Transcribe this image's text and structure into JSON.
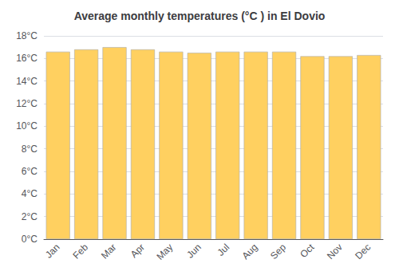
{
  "chart_data": {
    "type": "bar",
    "title": "Average monthly temperatures (°C ) in El Dovio",
    "categories": [
      "Jan",
      "Feb",
      "Mar",
      "Apr",
      "May",
      "Jun",
      "Jul",
      "Aug",
      "Sep",
      "Oct",
      "Nov",
      "Dec"
    ],
    "values": [
      16.6,
      16.8,
      17.0,
      16.8,
      16.6,
      16.5,
      16.6,
      16.6,
      16.6,
      16.2,
      16.2,
      16.3
    ],
    "color": "#FFD060",
    "ylim": [
      0,
      18
    ],
    "yticks": [
      {
        "value": 0,
        "label": "0°C"
      },
      {
        "value": 2,
        "label": "2°C"
      },
      {
        "value": 4,
        "label": "4°C"
      },
      {
        "value": 6,
        "label": "6°C"
      },
      {
        "value": 8,
        "label": "8°C"
      },
      {
        "value": 10,
        "label": "10°C"
      },
      {
        "value": 12,
        "label": "12°C"
      },
      {
        "value": 14,
        "label": "14°C"
      },
      {
        "value": 16,
        "label": "16°C"
      },
      {
        "value": 18,
        "label": "18°C"
      }
    ],
    "grid": true
  }
}
